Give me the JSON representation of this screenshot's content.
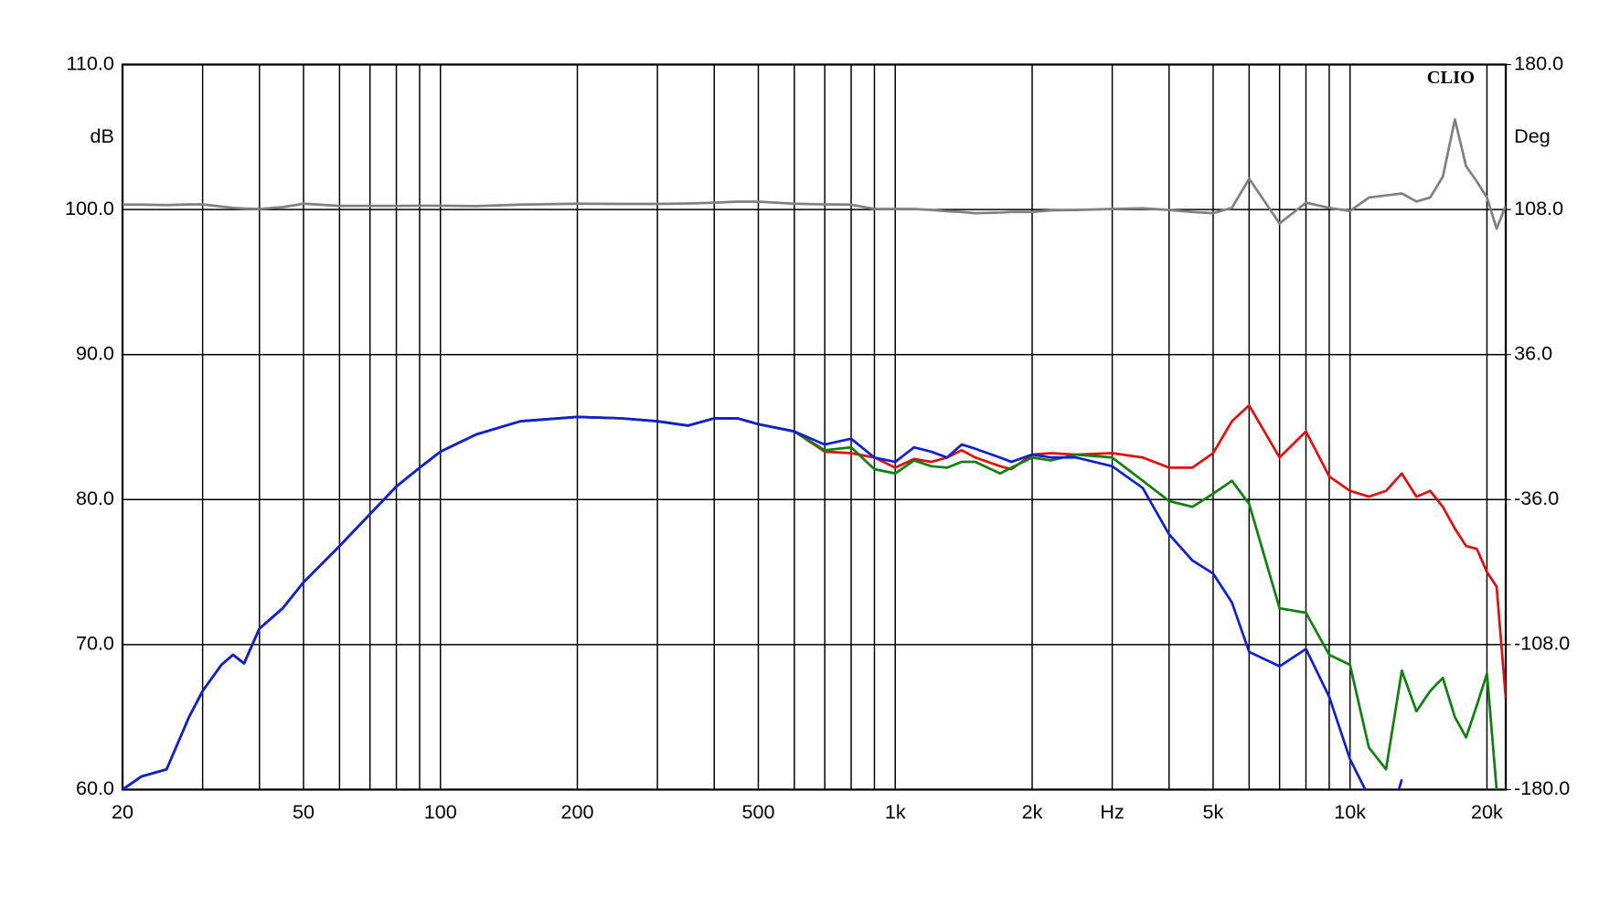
{
  "chart_data": {
    "type": "line",
    "annotation": "CLIO",
    "y_label": "dB",
    "y2_label": "Deg",
    "log_x": true,
    "grid": true,
    "xlim": [
      20,
      22000
    ],
    "ylim": [
      60,
      110
    ],
    "y2lim": [
      -180,
      180
    ],
    "xticks": [
      {
        "value": 20,
        "label": "20"
      },
      {
        "value": 50,
        "label": "50"
      },
      {
        "value": 100,
        "label": "100"
      },
      {
        "value": 200,
        "label": "200"
      },
      {
        "value": 500,
        "label": "500"
      },
      {
        "value": 1000,
        "label": "1k"
      },
      {
        "value": 2000,
        "label": "2k"
      },
      {
        "value": 3000,
        "label": "Hz"
      },
      {
        "value": 5000,
        "label": "5k"
      },
      {
        "value": 10000,
        "label": "10k"
      },
      {
        "value": 20000,
        "label": "20k"
      }
    ],
    "xminor": [
      30,
      40,
      60,
      70,
      80,
      90,
      300,
      400,
      600,
      700,
      800,
      900,
      4000,
      6000,
      7000,
      8000,
      9000
    ],
    "yticks": [
      {
        "value": 60,
        "label": "60.0"
      },
      {
        "value": 70,
        "label": "70.0"
      },
      {
        "value": 80,
        "label": "80.0"
      },
      {
        "value": 90,
        "label": "90.0"
      },
      {
        "value": 100,
        "label": "100.0"
      },
      {
        "value": 110,
        "label": "110.0"
      }
    ],
    "y2ticks": [
      {
        "value": -180,
        "label": "-180.0"
      },
      {
        "value": -108,
        "label": "-108.0"
      },
      {
        "value": -36,
        "label": "-36.0"
      },
      {
        "value": 36,
        "label": "36.0"
      },
      {
        "value": 108,
        "label": "108.0"
      },
      {
        "value": 180,
        "label": "180.0"
      }
    ],
    "x": [
      20,
      22,
      25,
      28,
      30,
      33,
      35,
      37,
      40,
      45,
      50,
      60,
      70,
      80,
      90,
      100,
      120,
      150,
      200,
      250,
      300,
      350,
      400,
      450,
      500,
      600,
      700,
      800,
      900,
      1000,
      1100,
      1200,
      1300,
      1400,
      1500,
      1700,
      1800,
      2000,
      2200,
      2500,
      3000,
      3500,
      4000,
      4500,
      5000,
      5500,
      6000,
      7000,
      8000,
      9000,
      10000,
      11000,
      12000,
      13000,
      14000,
      15000,
      16000,
      17000,
      18000,
      19000,
      20000,
      21000,
      22000
    ],
    "series": [
      {
        "color": "#e01010",
        "values": [
          60,
          60.9,
          61.4,
          65.0,
          66.8,
          68.6,
          69.3,
          68.7,
          71.1,
          72.5,
          74.3,
          76.8,
          79.0,
          80.9,
          82.2,
          83.3,
          84.5,
          85.4,
          85.7,
          85.6,
          85.4,
          85.1,
          85.6,
          85.6,
          85.2,
          84.7,
          83.3,
          83.2,
          82.9,
          82.2,
          82.8,
          82.6,
          82.9,
          83.4,
          82.9,
          82.3,
          82.1,
          83.1,
          83.2,
          83.1,
          83.2,
          82.9,
          82.2,
          82.2,
          83.2,
          85.4,
          86.5,
          82.9,
          84.7,
          81.6,
          80.6,
          80.2,
          80.6,
          81.8,
          80.2,
          80.6,
          79.5,
          78.0,
          76.8,
          76.6,
          75.0,
          74.0,
          66.3
        ]
      },
      {
        "color": "#108010",
        "values": [
          60,
          60.9,
          61.4,
          65.0,
          66.8,
          68.6,
          69.3,
          68.7,
          71.1,
          72.5,
          74.3,
          76.8,
          79.0,
          80.9,
          82.2,
          83.3,
          84.5,
          85.4,
          85.7,
          85.6,
          85.4,
          85.1,
          85.6,
          85.6,
          85.2,
          84.7,
          83.4,
          83.6,
          82.1,
          81.8,
          82.7,
          82.3,
          82.2,
          82.6,
          82.6,
          81.8,
          82.2,
          82.9,
          82.7,
          83.1,
          82.9,
          81.3,
          79.9,
          79.5,
          80.4,
          81.3,
          79.7,
          72.5,
          72.2,
          69.3,
          68.6,
          62.9,
          61.4,
          68.2,
          65.4,
          66.8,
          67.7,
          65.0,
          63.6,
          65.8,
          68.0,
          60.0,
          null
        ]
      },
      {
        "color": "#1020d0",
        "values": [
          60,
          60.9,
          61.4,
          65.0,
          66.8,
          68.6,
          69.3,
          68.7,
          71.1,
          72.5,
          74.3,
          76.8,
          79.0,
          80.9,
          82.2,
          83.3,
          84.5,
          85.4,
          85.7,
          85.6,
          85.4,
          85.1,
          85.6,
          85.6,
          85.2,
          84.7,
          83.8,
          84.2,
          82.9,
          82.6,
          83.6,
          83.3,
          82.9,
          83.8,
          83.5,
          82.9,
          82.6,
          83.1,
          82.9,
          82.9,
          82.3,
          80.8,
          77.6,
          75.8,
          74.9,
          72.9,
          69.5,
          68.5,
          69.7,
          66.4,
          62.1,
          59.5,
          57.0,
          60.7,
          null,
          null,
          null,
          null,
          null,
          null,
          null,
          null,
          null
        ]
      },
      {
        "color": "#808080",
        "axis": "y2",
        "values": [
          110.4,
          110.4,
          110.2,
          110.6,
          110.6,
          109.5,
          108.8,
          108.5,
          108.3,
          109.2,
          110.9,
          109.8,
          109.8,
          109.8,
          109.9,
          109.9,
          109.7,
          110.4,
          110.9,
          110.8,
          110.8,
          111.0,
          111.4,
          111.9,
          111.9,
          110.9,
          110.6,
          110.4,
          108.3,
          108.3,
          108.3,
          107.8,
          107.2,
          106.8,
          106.2,
          106.5,
          106.8,
          106.8,
          107.6,
          107.8,
          108.3,
          108.6,
          107.8,
          106.8,
          106.2,
          108.8,
          123.3,
          101.1,
          111.4,
          108.8,
          107.3,
          114.0,
          115.0,
          116.0,
          112.0,
          114.0,
          124.3,
          152.7,
          129.5,
          122.0,
          114.0,
          98.5,
          109.9
        ]
      }
    ]
  }
}
